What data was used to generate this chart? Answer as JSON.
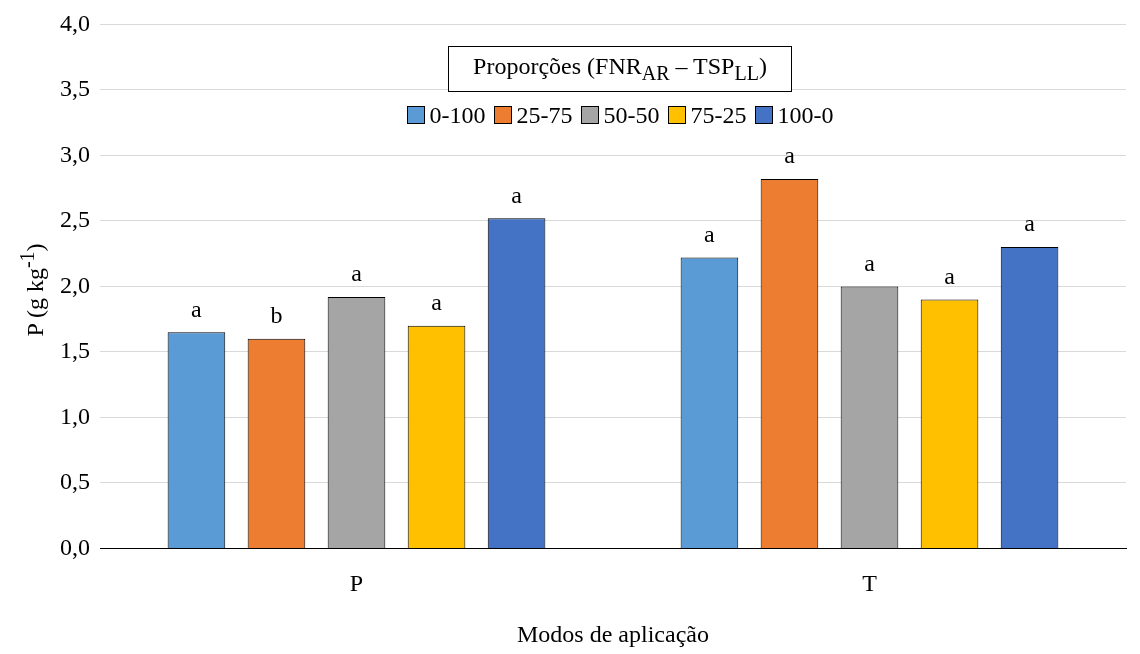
{
  "chart_data": {
    "type": "bar",
    "xlabel": "Modos de aplicação",
    "ylabel": "P (g kg$^{-1}$)",
    "legend_title": "Proporções (FNR$_{AR}$ – TSP$_{LL}$)",
    "categories": [
      "P",
      "T"
    ],
    "series": [
      {
        "name": "0-100",
        "color": "#5b9bd5",
        "values": [
          1.65,
          2.22
        ],
        "value_labels": [
          "a",
          "a"
        ]
      },
      {
        "name": "25-75",
        "color": "#ed7d31",
        "values": [
          1.6,
          2.82
        ],
        "value_labels": [
          "b",
          "a"
        ]
      },
      {
        "name": "50-50",
        "color": "#a5a5a5",
        "values": [
          1.92,
          2.0
        ],
        "value_labels": [
          "a",
          "a"
        ]
      },
      {
        "name": "75-25",
        "color": "#ffc000",
        "values": [
          1.7,
          1.9
        ],
        "value_labels": [
          "a",
          "a"
        ]
      },
      {
        "name": "100-0",
        "color": "#4472c4",
        "values": [
          2.52,
          2.3
        ],
        "value_labels": [
          "a",
          "a"
        ]
      }
    ],
    "ylim": [
      0,
      4
    ],
    "yticks": [
      {
        "value": 0,
        "label": "0,0"
      },
      {
        "value": 0.5,
        "label": "0,5"
      },
      {
        "value": 1,
        "label": "1,0"
      },
      {
        "value": 1.5,
        "label": "1,5"
      },
      {
        "value": 2,
        "label": "2,0"
      },
      {
        "value": 2.5,
        "label": "2,5"
      },
      {
        "value": 3,
        "label": "3,0"
      },
      {
        "value": 3.5,
        "label": "3,5"
      },
      {
        "value": 4,
        "label": "4,0"
      }
    ],
    "grid": "y",
    "legend": "top"
  }
}
